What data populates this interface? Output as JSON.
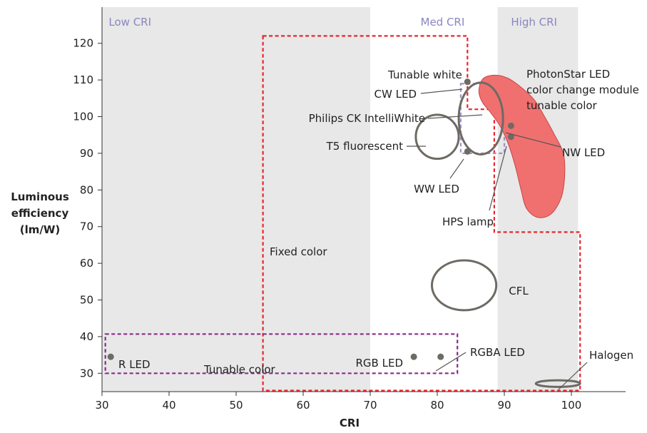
{
  "chart_data": {
    "type": "scatter",
    "title": "",
    "xlabel": "CRI",
    "ylabel_lines": [
      "Luminous",
      "efficiency",
      "(lm/W)"
    ],
    "xlim": [
      30,
      108
    ],
    "ylim": [
      25,
      126
    ],
    "x_ticks": [
      30,
      40,
      50,
      60,
      70,
      80,
      90,
      100
    ],
    "y_ticks": [
      30,
      40,
      50,
      60,
      70,
      80,
      90,
      100,
      110,
      120
    ],
    "grid": false,
    "bands": [
      {
        "label": "Low CRI",
        "from": 30,
        "to": 70,
        "color": "#e8e8e8",
        "label_color": "#8a86c0"
      },
      {
        "label": "Med CRI",
        "from": 70,
        "to": 89,
        "color": "#ffffff",
        "label_color": "#8a86c0"
      },
      {
        "label": "High CRI",
        "from": 89,
        "to": 101,
        "color": "#e8e8e8",
        "label_color": "#8a86c0"
      }
    ],
    "regions": [
      {
        "label": "Fixed color",
        "color": "#e8262f",
        "polygon": [
          [
            54,
            122
          ],
          [
            84.5,
            122
          ],
          [
            84.5,
            102
          ],
          [
            88.5,
            102
          ],
          [
            88.5,
            68.5
          ],
          [
            101.3,
            68.5
          ],
          [
            101.3,
            25.3
          ],
          [
            54,
            25.3
          ]
        ]
      },
      {
        "label": "Tunable color",
        "color": "#8b2a8b",
        "x": [
          30.5,
          83
        ],
        "y": [
          30,
          40.7
        ]
      },
      {
        "label": "Tunable white",
        "color": "#9a96c8",
        "x": [
          83.5,
          90
        ],
        "y": [
          90,
          109
        ]
      }
    ],
    "points": [
      {
        "label": "CW LED",
        "x": 84.5,
        "y": 109.5
      },
      {
        "label": "WW LED",
        "x": 84.5,
        "y": 90.5
      },
      {
        "label": "NW LED",
        "x": 91,
        "y": 97.5
      },
      {
        "label": "HPS lamp",
        "x": 91,
        "y": 94.5
      },
      {
        "label": "R LED",
        "x": 31.3,
        "y": 34.5
      },
      {
        "label": "RGB LED",
        "x": 76.5,
        "y": 34.5
      },
      {
        "label": "RGBA LED",
        "x": 80.5,
        "y": 34.5
      }
    ],
    "ellipses": [
      {
        "label": "Philips CK IntelliWhite",
        "cx": 86.5,
        "cy": 99.5,
        "rx": 3.3,
        "ry": 9.8
      },
      {
        "label": "T5 fluorescent",
        "cx": 80,
        "cy": 94.5,
        "rx": 3.2,
        "ry": 6
      },
      {
        "label": "CFL",
        "cx": 84,
        "cy": 54,
        "rx": 4.8,
        "ry": 6.8
      },
      {
        "label": "Halogen",
        "cx": 98,
        "cy": 27.2,
        "rx": 3.3,
        "ry": 0.9
      }
    ],
    "blob": {
      "label_lines": [
        "PhotonStar LED",
        "color change module",
        "tunable color"
      ],
      "color": "#f07070",
      "outline": [
        [
          86.8,
          110.3
        ],
        [
          88.5,
          111.3
        ],
        [
          90.5,
          110.5
        ],
        [
          92.5,
          108
        ],
        [
          94.5,
          104.5
        ],
        [
          96,
          100
        ],
        [
          97.5,
          95
        ],
        [
          98.8,
          90
        ],
        [
          99,
          84
        ],
        [
          98.5,
          78
        ],
        [
          97,
          73.5
        ],
        [
          95,
          72.5
        ],
        [
          93.3,
          75
        ],
        [
          92.5,
          80
        ],
        [
          91.7,
          86
        ],
        [
          90.7,
          92
        ],
        [
          89.5,
          97
        ],
        [
          88,
          101
        ],
        [
          86.7,
          104
        ],
        [
          86.2,
          107
        ]
      ]
    }
  }
}
